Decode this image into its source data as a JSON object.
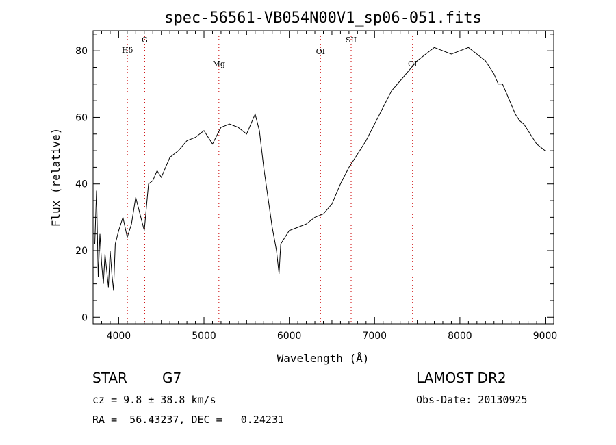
{
  "chart_data": {
    "type": "line",
    "title": "spec-56561-VB054N00V1_sp06-051.fits",
    "xlabel": "Wavelength (Å)",
    "ylabel": "Flux (relative)",
    "xlim": [
      3700,
      9100
    ],
    "ylim": [
      -2,
      86
    ],
    "xticks": [
      4000,
      5000,
      6000,
      7000,
      8000,
      9000
    ],
    "xtick_labels": [
      "4000",
      "5000",
      "6000",
      "7000",
      "8000",
      "9000"
    ],
    "yticks": [
      0,
      20,
      40,
      60,
      80
    ],
    "ytick_labels": [
      "0",
      "20",
      "40",
      "60",
      "80"
    ],
    "grid": false,
    "line_color": "#000000",
    "marker_color": "#cc0000",
    "spectral_lines": [
      {
        "label": "Hδ",
        "wavelength": 4102
      },
      {
        "label": "G",
        "wavelength": 4305
      },
      {
        "label": "Mg",
        "wavelength": 5175
      },
      {
        "label": "OI",
        "wavelength": 6366
      },
      {
        "label": "SII",
        "wavelength": 6725
      },
      {
        "label": "OI",
        "wavelength": 7445
      }
    ],
    "series": [
      {
        "x": [
          3720,
          3740,
          3760,
          3780,
          3800,
          3820,
          3840,
          3860,
          3880,
          3900,
          3920,
          3940,
          3960,
          3980,
          4000,
          4050,
          4100,
          4150,
          4200,
          4250,
          4300,
          4350,
          4400,
          4450,
          4500,
          4600,
          4700,
          4800,
          4900,
          5000,
          5100,
          5200,
          5300,
          5400,
          5500,
          5600,
          5650,
          5700,
          5750,
          5800,
          5850,
          5880,
          5900,
          5950,
          6000,
          6100,
          6200,
          6300,
          6400,
          6500,
          6600,
          6700,
          6800,
          6900,
          7000,
          7100,
          7200,
          7300,
          7400,
          7500,
          7600,
          7700,
          7800,
          7900,
          8000,
          8100,
          8200,
          8300,
          8350,
          8400,
          8450,
          8500,
          8550,
          8600,
          8650,
          8700,
          8750,
          8800,
          8850,
          8900,
          8950,
          9000
        ],
        "y": [
          22,
          38,
          12,
          25,
          16,
          10,
          19,
          14,
          9,
          20,
          13,
          8,
          22,
          24,
          26,
          30,
          24,
          28,
          36,
          31,
          26,
          40,
          41,
          44,
          42,
          48,
          50,
          53,
          54,
          56,
          52,
          57,
          58,
          57,
          55,
          61,
          56,
          45,
          36,
          27,
          20,
          13,
          22,
          24,
          26,
          27,
          28,
          30,
          31,
          34,
          40,
          45,
          49,
          53,
          58,
          63,
          68,
          71,
          74,
          77,
          79,
          81,
          80,
          79,
          80,
          81,
          79,
          77,
          75,
          73,
          70,
          70,
          67,
          64,
          61,
          59,
          58,
          56,
          54,
          52,
          51,
          50
        ]
      }
    ]
  },
  "info": {
    "object_type": "STAR",
    "spectral_class": "G7",
    "survey": "LAMOST DR2",
    "redshift": "cz = 9.8 ± 38.8 km/s",
    "obs_date": "Obs-Date: 20130925",
    "coords": "RA =  56.43237, DEC =   0.24231"
  }
}
